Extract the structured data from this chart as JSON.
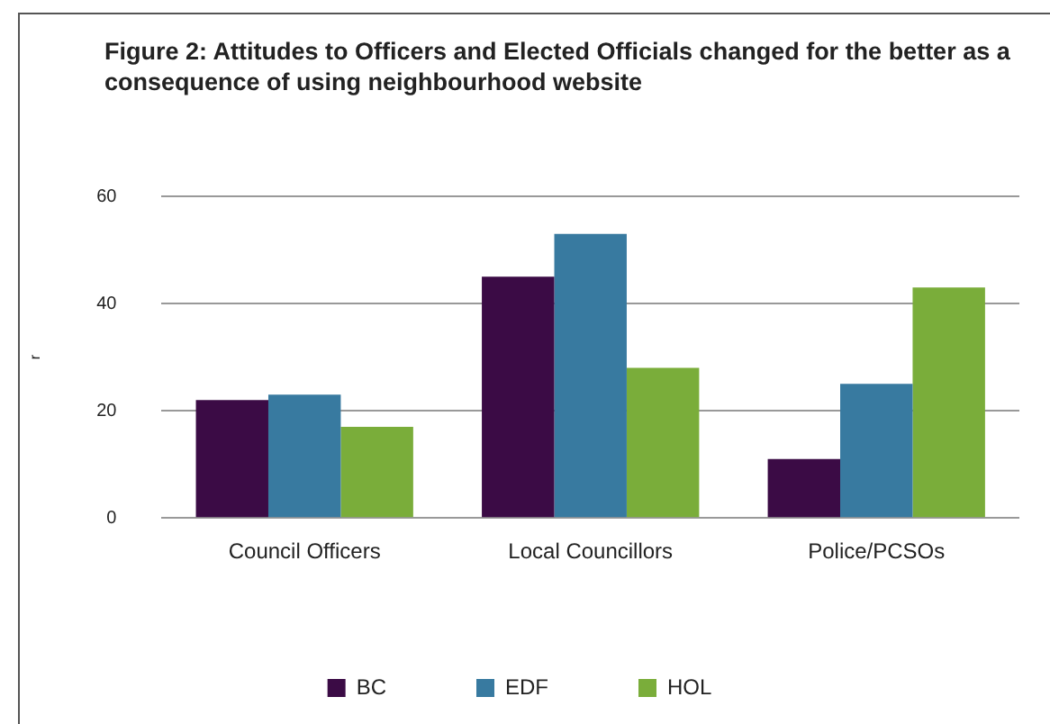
{
  "chart_data": {
    "type": "bar",
    "title": "Figure 2: Attitudes to Officers and Elected Officials changed for the better as a consequence of using neighbourhood website",
    "ylabel": "r",
    "categories": [
      "Council Officers",
      "Local Councillors",
      "Police/PCSOs"
    ],
    "series": [
      {
        "name": "BC",
        "color": "#3b0b45",
        "values": [
          22,
          45,
          11
        ]
      },
      {
        "name": "EDF",
        "color": "#387aa0",
        "values": [
          23,
          53,
          25
        ]
      },
      {
        "name": "HOL",
        "color": "#7aad3a",
        "values": [
          17,
          28,
          43
        ]
      }
    ],
    "ylim": [
      0,
      60
    ],
    "yticks": [
      0,
      20,
      40,
      60
    ],
    "grid": "y",
    "legend": "bottom"
  }
}
